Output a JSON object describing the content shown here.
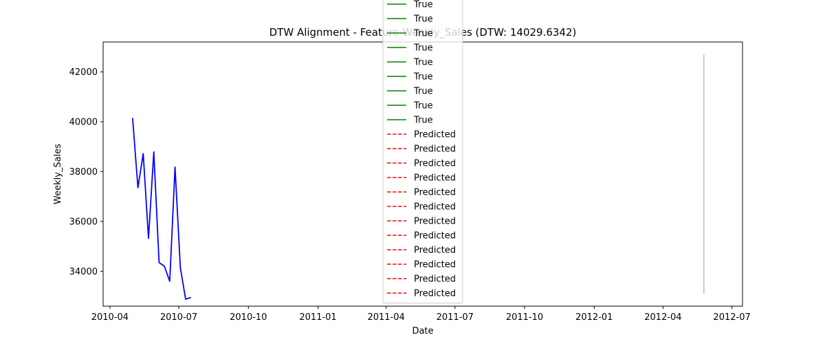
{
  "chart_data": {
    "type": "line",
    "title": "DTW Alignment - Feature Weekly_Sales (DTW: 14029.6342)",
    "xlabel": "Date",
    "ylabel": "Weekly_Sales",
    "xlim": [
      "2010-03-23",
      "2012-07-15"
    ],
    "ylim": [
      32600,
      43200
    ],
    "x_ticks": [
      "2010-04",
      "2010-07",
      "2010-10",
      "2011-01",
      "2011-04",
      "2011-07",
      "2011-10",
      "2012-01",
      "2012-04",
      "2012-07"
    ],
    "y_ticks": [
      34000,
      36000,
      38000,
      40000,
      42000
    ],
    "grid": false,
    "legend_position": "upper center",
    "series": [
      {
        "name": "",
        "color": "#0000ff",
        "style": "solid",
        "x": [
          "2010-05-01",
          "2010-05-08",
          "2010-05-15",
          "2010-05-22",
          "2010-05-29",
          "2010-06-05",
          "2010-06-12",
          "2010-06-19",
          "2010-06-26",
          "2010-07-03",
          "2010-07-10",
          "2010-07-17"
        ],
        "values": [
          40150,
          37350,
          38720,
          35320,
          38790,
          34350,
          34200,
          33600,
          38180,
          34150,
          32880,
          32950
        ]
      },
      {
        "name": "",
        "color": "#808080",
        "style": "solid",
        "x": [
          "2012-05-25",
          "2012-05-25"
        ],
        "values": [
          33100,
          42700
        ]
      }
    ],
    "legend_entries": [
      {
        "label": "True",
        "color": "#008000",
        "style": "solid"
      },
      {
        "label": "True",
        "color": "#008000",
        "style": "solid"
      },
      {
        "label": "True",
        "color": "#008000",
        "style": "solid"
      },
      {
        "label": "True",
        "color": "#008000",
        "style": "solid"
      },
      {
        "label": "True",
        "color": "#008000",
        "style": "solid"
      },
      {
        "label": "True",
        "color": "#008000",
        "style": "solid"
      },
      {
        "label": "True",
        "color": "#008000",
        "style": "solid"
      },
      {
        "label": "True",
        "color": "#008000",
        "style": "solid"
      },
      {
        "label": "True",
        "color": "#008000",
        "style": "solid"
      },
      {
        "label": "Predicted",
        "color": "#ff0000",
        "style": "dashed"
      },
      {
        "label": "Predicted",
        "color": "#ff0000",
        "style": "dashed"
      },
      {
        "label": "Predicted",
        "color": "#ff0000",
        "style": "dashed"
      },
      {
        "label": "Predicted",
        "color": "#ff0000",
        "style": "dashed"
      },
      {
        "label": "Predicted",
        "color": "#ff0000",
        "style": "dashed"
      },
      {
        "label": "Predicted",
        "color": "#ff0000",
        "style": "dashed"
      },
      {
        "label": "Predicted",
        "color": "#ff0000",
        "style": "dashed"
      },
      {
        "label": "Predicted",
        "color": "#ff0000",
        "style": "dashed"
      },
      {
        "label": "Predicted",
        "color": "#ff0000",
        "style": "dashed"
      },
      {
        "label": "Predicted",
        "color": "#ff0000",
        "style": "dashed"
      },
      {
        "label": "Predicted",
        "color": "#ff0000",
        "style": "dashed"
      },
      {
        "label": "Predicted",
        "color": "#ff0000",
        "style": "dashed"
      }
    ]
  }
}
